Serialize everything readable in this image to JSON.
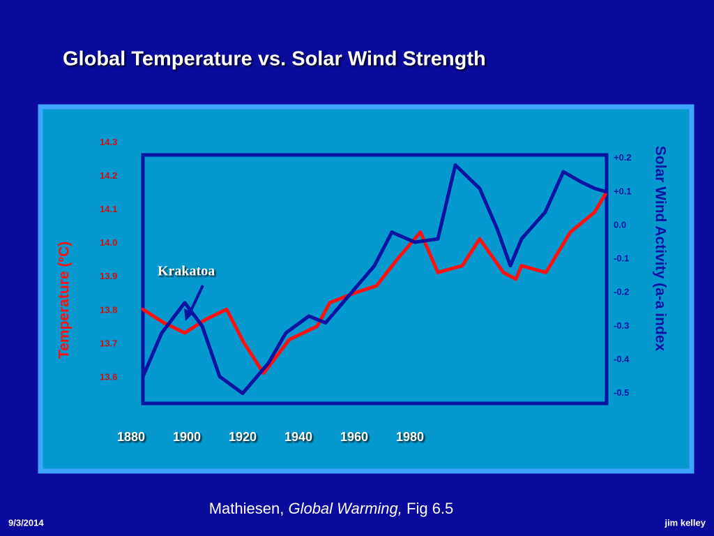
{
  "chart_data": {
    "type": "line",
    "title": "Global Temperature vs. Solar Wind Strength",
    "ylabel": "Temperature (ºC)",
    "y2label": "Solar Wind Activity (a-a index",
    "annotation": "Krakatoa",
    "xlim": [
      1884.25,
      2050.5
    ],
    "xticks": [
      1880,
      1900,
      1920,
      1940,
      1960,
      1980
    ],
    "ylim": [
      13.54,
      14.28
    ],
    "yticks": [
      13.6,
      13.7,
      13.8,
      13.9,
      {
        "value": 14,
        "label": "14.0"
      },
      14.1,
      14.2,
      14.3
    ],
    "y2lim": [
      -0.53,
      0.21
    ],
    "y2ticks": [
      {
        "value": 0.2,
        "label": "+0.2"
      },
      {
        "value": 0.1,
        "label": "+0.1"
      },
      {
        "value": 0,
        "label": "0.0"
      },
      -0.1,
      -0.2,
      -0.3,
      -0.4,
      -0.5
    ],
    "series": [
      {
        "color": "#ff1010",
        "axis": "y",
        "x": [
          1884.25,
          1891.75,
          1899.25,
          1906.75,
          1914.25,
          1920.5,
          1927.5,
          1936.75,
          1946.75,
          1951.25,
          1960.5,
          1968,
          1975.5,
          1983.75,
          1990,
          1998.75,
          2005,
          2013.5,
          2018,
          2020,
          2028.75,
          2037.5,
          2046.25,
          2050.5
        ],
        "values": [
          13.82,
          13.78,
          13.75,
          13.79,
          13.82,
          13.72,
          13.63,
          13.73,
          13.77,
          13.84,
          13.87,
          13.89,
          13.97,
          14.05,
          13.93,
          13.95,
          14.03,
          13.93,
          13.91,
          13.95,
          13.93,
          14.05,
          14.11,
          14.17
        ]
      },
      {
        "color": "#0a14a0",
        "axis": "y2",
        "x": [
          1884.25,
          1891,
          1899.25,
          1905.5,
          1911.75,
          1920,
          1929.25,
          1935.5,
          1943.75,
          1949.75,
          1958,
          1967.25,
          1973.5,
          1981.75,
          1990,
          1996.25,
          2005,
          2011.25,
          2016,
          2020,
          2028.5,
          2035,
          2041.25,
          2046.25,
          2050.5
        ],
        "values": [
          -0.45,
          -0.32,
          -0.23,
          -0.3,
          -0.45,
          -0.5,
          -0.41,
          -0.32,
          -0.27,
          -0.29,
          -0.21,
          -0.12,
          -0.02,
          -0.05,
          -0.04,
          0.18,
          0.11,
          -0.01,
          -0.12,
          -0.04,
          0.04,
          0.16,
          0.13,
          0.11,
          0.1
        ]
      }
    ]
  },
  "caption": {
    "author": "Mathiesen,",
    "source": "Global Warming,",
    "figure": "Fig 6.5"
  },
  "footer": {
    "date": "9/3/2014",
    "author": "jim kelley"
  }
}
